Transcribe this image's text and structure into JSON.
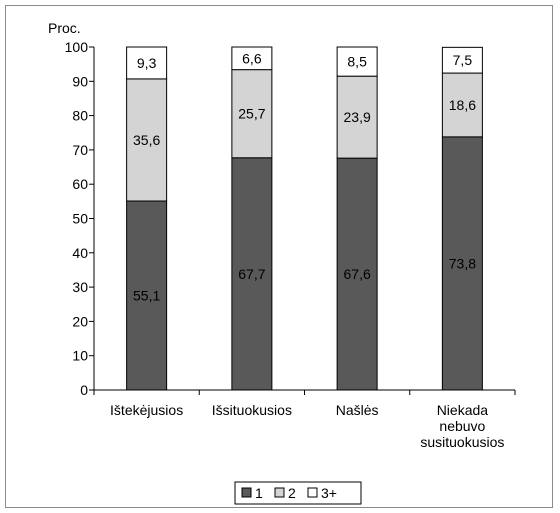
{
  "chart_data": {
    "type": "bar",
    "stacked": true,
    "title": "",
    "ylabel": "Proc.",
    "xlabel": "",
    "ylim": [
      0,
      100
    ],
    "yticks": [
      0,
      10,
      20,
      30,
      40,
      50,
      60,
      70,
      80,
      90,
      100
    ],
    "categories": [
      [
        "Ištekėjusios"
      ],
      [
        "Išsituokusios"
      ],
      [
        "Našlės"
      ],
      [
        "Niekada",
        "nebuvo",
        "susituokusios"
      ]
    ],
    "series": [
      {
        "name": "1",
        "color": "#595959",
        "values": [
          55.1,
          67.7,
          67.6,
          73.8
        ],
        "labels": [
          "55,1",
          "67,7",
          "67,6",
          "73,8"
        ]
      },
      {
        "name": "2",
        "color": "#d4d4d4",
        "values": [
          35.6,
          25.7,
          23.9,
          18.6
        ],
        "labels": [
          "35,6",
          "25,7",
          "23,9",
          "18,6"
        ]
      },
      {
        "name": "3+",
        "color": "#ffffff",
        "values": [
          9.3,
          6.6,
          8.5,
          7.5
        ],
        "labels": [
          "9,3",
          "6,6",
          "8,5",
          "7,5"
        ]
      }
    ],
    "legend_position": "bottom",
    "grid": false
  }
}
